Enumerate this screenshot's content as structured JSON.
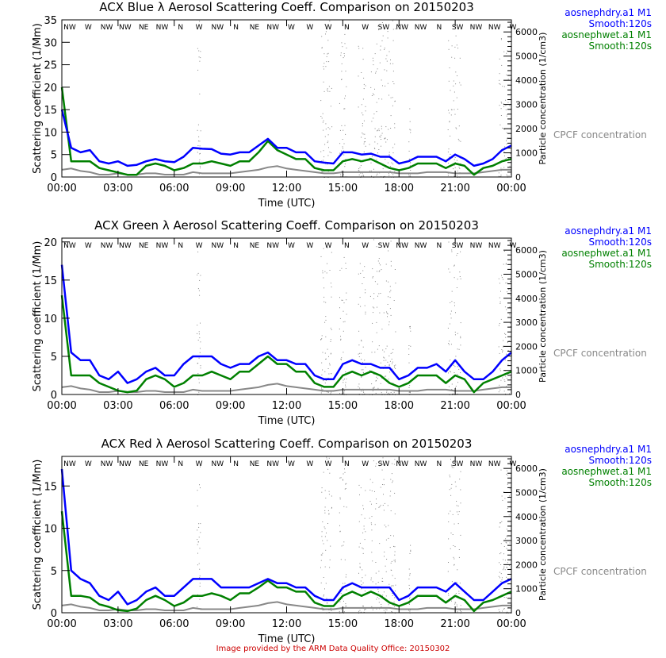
{
  "footer": "Image provided by the ARM Data Quality Office: 20150302",
  "colors": {
    "dry": "#0000ff",
    "wet": "#008000",
    "cpc": "#888888",
    "footer": "#cc0000"
  },
  "wind_directions": [
    "NW",
    "W",
    "NW",
    "NW",
    "NE",
    "NW",
    "N",
    "W",
    "NW",
    "N",
    "NE",
    "NW",
    "W",
    "W",
    "W",
    "N",
    "W",
    "SW",
    "NW",
    "NW",
    "N",
    "SW",
    "NW",
    "NW",
    "W"
  ],
  "chart_data": [
    {
      "type": "line",
      "title": "ACX Blue λ Aerosol Scattering Coeff. Comparison on 20150203",
      "xlabel": "Time (UTC)",
      "ylabel": "Scattering coefficient (1/Mm)",
      "y2label": "Particle concentration (1/cm3)",
      "xlim": [
        0,
        24
      ],
      "ylim": [
        0,
        35
      ],
      "y2lim": [
        0,
        6500
      ],
      "xticks": [
        "00:00",
        "03:00",
        "06:00",
        "09:00",
        "12:00",
        "15:00",
        "18:00",
        "21:00",
        "00:00"
      ],
      "yticks": [
        0,
        5,
        10,
        15,
        20,
        25,
        30,
        35
      ],
      "y2ticks": [
        0,
        1000,
        2000,
        3000,
        4000,
        5000,
        6000
      ],
      "legend": [
        {
          "name": "aosnephdry.a1 M1",
          "sub": "Smooth:120s",
          "color": "#0000ff"
        },
        {
          "name": "aosnephwet.a1 M1",
          "sub": "Smooth:120s",
          "color": "#008000"
        }
      ],
      "cpc_label": "CPCF concentration",
      "x_step_hours": 0.5,
      "series": [
        {
          "name": "aosnephdry.a1 M1",
          "values": [
            15,
            6.5,
            5.5,
            6,
            3.5,
            3,
            3.5,
            2.5,
            2.7,
            3.5,
            4,
            3.5,
            3.3,
            4.5,
            6.5,
            6.3,
            6.2,
            5.2,
            5,
            5.5,
            5.5,
            7,
            8.5,
            6.5,
            6.5,
            5.5,
            5.5,
            3.5,
            3.2,
            3,
            5.5,
            5.5,
            5,
            5.2,
            4.5,
            4.5,
            3,
            3.5,
            4.5,
            4.5,
            4.5,
            3.5,
            5,
            4,
            2.5,
            3,
            4,
            6,
            7
          ]
        },
        {
          "name": "aosnephwet.a1 M1",
          "values": [
            20,
            3.5,
            3.5,
            3.5,
            2,
            1.5,
            1,
            0.5,
            0.5,
            2.5,
            3,
            2.5,
            1.5,
            2,
            3,
            3,
            3.5,
            3,
            2.5,
            3.5,
            3.5,
            5.5,
            8,
            6,
            5,
            4,
            4,
            2,
            1.5,
            1.5,
            3.5,
            4,
            3.5,
            4,
            3,
            2,
            1.5,
            2,
            3,
            3,
            3,
            2,
            3,
            2.5,
            0.5,
            2,
            2.5,
            3.5,
            4
          ]
        }
      ]
    },
    {
      "type": "line",
      "title": "ACX Green λ Aerosol Scattering Coeff. Comparison on 20150203",
      "xlabel": "Time (UTC)",
      "ylabel": "Scattering coefficient (1/Mm)",
      "y2label": "Particle concentration (1/cm3)",
      "xlim": [
        0,
        24
      ],
      "ylim": [
        0,
        20.5
      ],
      "y2lim": [
        0,
        6500
      ],
      "xticks": [
        "00:00",
        "03:00",
        "06:00",
        "09:00",
        "12:00",
        "15:00",
        "18:00",
        "21:00",
        "00:00"
      ],
      "yticks": [
        0,
        5,
        10,
        15,
        20
      ],
      "y2ticks": [
        0,
        1000,
        2000,
        3000,
        4000,
        5000,
        6000
      ],
      "legend": [
        {
          "name": "aosnephdry.a1 M1",
          "sub": "Smooth:120s",
          "color": "#0000ff"
        },
        {
          "name": "aosnephwet.a1 M1",
          "sub": "Smooth:120s",
          "color": "#008000"
        }
      ],
      "cpc_label": "CPCF concentration",
      "x_step_hours": 0.5,
      "series": [
        {
          "name": "aosnephdry.a1 M1",
          "values": [
            17,
            5.5,
            4.5,
            4.5,
            2.5,
            2,
            3,
            1.5,
            2,
            3,
            3.5,
            2.5,
            2.5,
            4,
            5,
            5,
            5,
            4,
            3.5,
            4,
            4,
            5,
            5.5,
            4.5,
            4.5,
            4,
            4,
            2.5,
            2,
            2,
            4,
            4.5,
            4,
            4,
            3.5,
            3.5,
            2,
            2.5,
            3.5,
            3.5,
            4,
            3,
            4.5,
            3,
            2,
            2,
            3,
            4.5,
            5.5
          ]
        },
        {
          "name": "aosnephwet.a1 M1",
          "values": [
            13,
            2.5,
            2.5,
            2.5,
            1.5,
            1,
            0.5,
            0.3,
            0.5,
            2,
            2.5,
            2,
            1,
            1.5,
            2.5,
            2.5,
            3,
            2.5,
            2,
            3,
            3,
            4,
            5,
            4,
            4,
            3,
            3,
            1.5,
            1,
            1,
            2.5,
            3,
            2.5,
            3,
            2.5,
            1.5,
            1,
            1.5,
            2.5,
            2.5,
            2.5,
            1.5,
            2.5,
            2,
            0.3,
            1.5,
            2,
            2.5,
            3
          ]
        }
      ]
    },
    {
      "type": "line",
      "title": "ACX Red λ Aerosol Scattering Coeff. Comparison on 20150203",
      "xlabel": "Time (UTC)",
      "ylabel": "Scattering coefficient (1/Mm)",
      "y2label": "Particle concentration (1/cm3)",
      "xlim": [
        0,
        24
      ],
      "ylim": [
        0,
        18.5
      ],
      "y2lim": [
        0,
        6500
      ],
      "xticks": [
        "00:00",
        "03:00",
        "06:00",
        "09:00",
        "12:00",
        "15:00",
        "18:00",
        "21:00",
        "00:00"
      ],
      "yticks": [
        0,
        5,
        10,
        15
      ],
      "y2ticks": [
        0,
        1000,
        2000,
        3000,
        4000,
        5000,
        6000
      ],
      "legend": [
        {
          "name": "aosnephdry.a1 M1",
          "sub": "Smooth:120s",
          "color": "#0000ff"
        },
        {
          "name": "aosnephwet.a1 M1",
          "sub": "Smooth:120s",
          "color": "#008000"
        }
      ],
      "cpc_label": "CPCF concentration",
      "x_step_hours": 0.5,
      "series": [
        {
          "name": "aosnephdry.a1 M1",
          "values": [
            17,
            5,
            4,
            3.5,
            2,
            1.5,
            2.5,
            1,
            1.5,
            2.5,
            3,
            2,
            2,
            3,
            4,
            4,
            4,
            3,
            3,
            3,
            3,
            3.5,
            4,
            3.5,
            3.5,
            3,
            3,
            2,
            1.5,
            1.5,
            3,
            3.5,
            3,
            3,
            3,
            3,
            1.5,
            2,
            3,
            3,
            3,
            2.5,
            3.5,
            2.5,
            1.5,
            1.5,
            2.5,
            3.5,
            4
          ]
        },
        {
          "name": "aosnephwet.a1 M1",
          "values": [
            12,
            2,
            2,
            1.8,
            1,
            0.7,
            0.3,
            0.2,
            0.5,
            1.5,
            2,
            1.5,
            0.8,
            1.2,
            2,
            2,
            2.3,
            2,
            1.5,
            2.3,
            2.3,
            3,
            3.8,
            3,
            3,
            2.5,
            2.5,
            1.2,
            0.8,
            0.8,
            2,
            2.5,
            2,
            2.5,
            2,
            1.2,
            0.8,
            1.2,
            2,
            2,
            2,
            1.2,
            2,
            1.5,
            0.2,
            1.2,
            1.5,
            2,
            2.5
          ]
        }
      ]
    }
  ],
  "cpc": {
    "name": "CPCF concentration",
    "x_step_hours": 0.5,
    "baseline": [
      300,
      350,
      250,
      200,
      100,
      100,
      150,
      100,
      100,
      150,
      150,
      100,
      100,
      100,
      200,
      150,
      150,
      150,
      150,
      200,
      250,
      300,
      400,
      450,
      350,
      300,
      250,
      200,
      150,
      150,
      200,
      200,
      200,
      200,
      200,
      200,
      150,
      150,
      150,
      200,
      200,
      200,
      150,
      150,
      150,
      200,
      250,
      300,
      300
    ],
    "spike_windows": [
      [
        7.2,
        7.4,
        6500
      ],
      [
        13.8,
        14.4,
        6500
      ],
      [
        14.8,
        15.2,
        6000
      ],
      [
        15.8,
        16.2,
        5500
      ],
      [
        16.4,
        17.8,
        6500
      ],
      [
        18.5,
        18.6,
        3000
      ],
      [
        20.6,
        21.3,
        6500
      ],
      [
        23.3,
        24,
        6000
      ]
    ]
  }
}
